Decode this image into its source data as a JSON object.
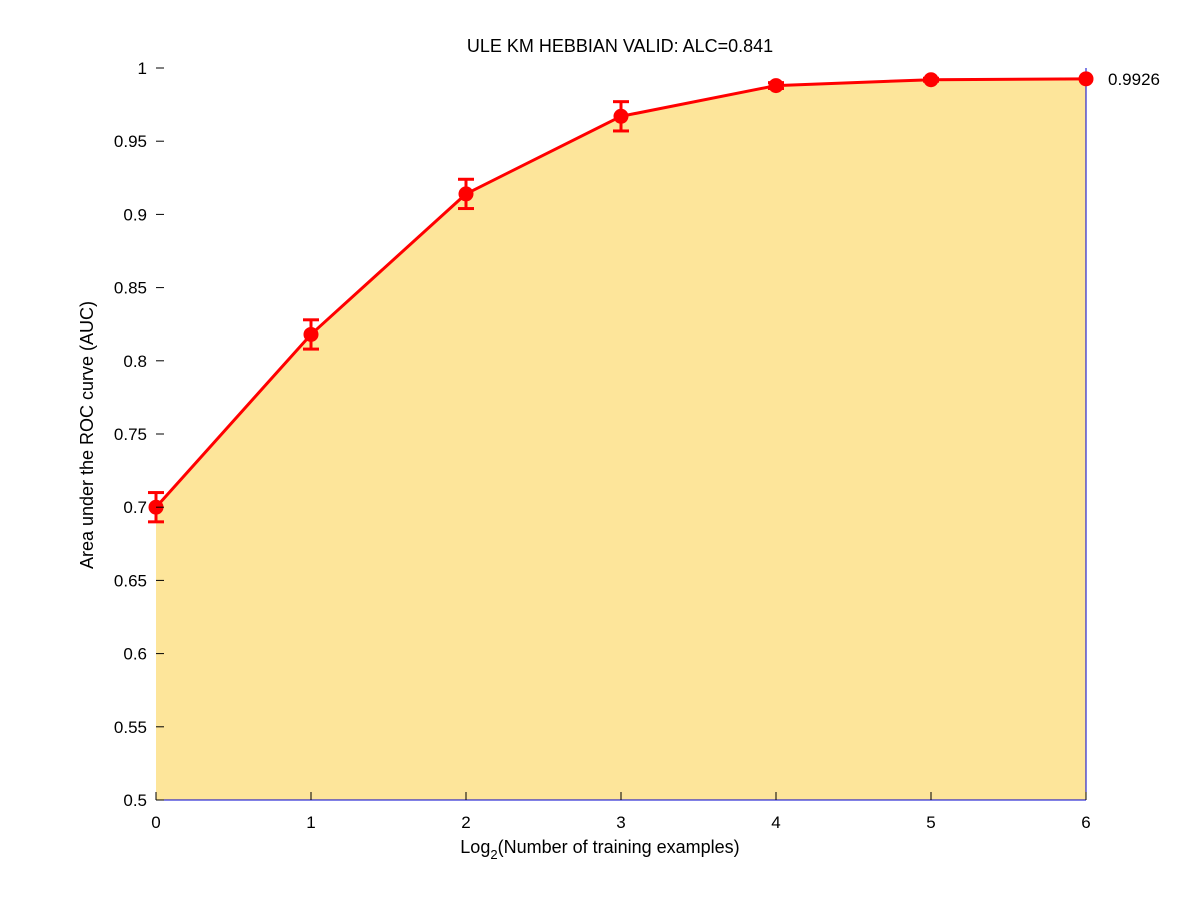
{
  "chart_data": {
    "type": "line",
    "title": "ULE KM HEBBIAN VALID: ALC=0.841",
    "xlabel_main": "Log",
    "xlabel_sub": "2",
    "xlabel_rest": "(Number of training examples)",
    "ylabel": "Area under the ROC curve (AUC)",
    "xlim": [
      0,
      6
    ],
    "ylim": [
      0.5,
      1
    ],
    "x_ticks": [
      0,
      1,
      2,
      3,
      4,
      5,
      6
    ],
    "x_tick_labels": [
      "0",
      "1",
      "2",
      "3",
      "4",
      "5",
      "6"
    ],
    "y_ticks": [
      0.5,
      0.55,
      0.6,
      0.65,
      0.7,
      0.75,
      0.8,
      0.85,
      0.9,
      0.95,
      1
    ],
    "y_tick_labels": [
      "0.5",
      "0.55",
      "0.6",
      "0.65",
      "0.7",
      "0.75",
      "0.8",
      "0.85",
      "0.9",
      "0.95",
      "1"
    ],
    "grid": false,
    "series": [
      {
        "x": [
          0,
          1,
          2,
          3,
          4,
          5,
          6
        ],
        "y": [
          0.7,
          0.818,
          0.914,
          0.967,
          0.988,
          0.992,
          0.9926
        ],
        "err": [
          0.01,
          0.01,
          0.01,
          0.01,
          0.002,
          0.001,
          0
        ]
      }
    ],
    "end_label": "0.9926",
    "colors": {
      "line": "#ff0000",
      "area": "#fde59a",
      "axes": "#0000cc"
    }
  }
}
